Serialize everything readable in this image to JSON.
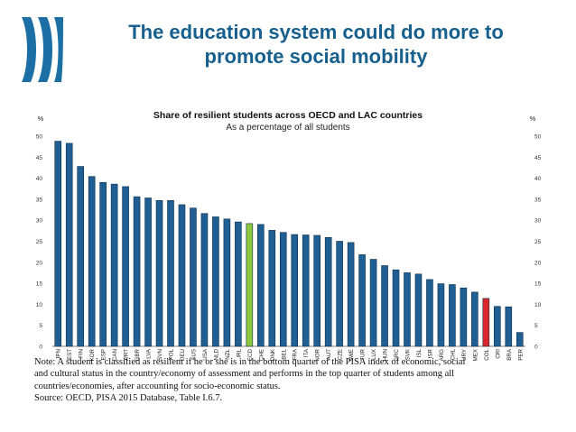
{
  "slide": {
    "title_line1": "The education system could do more to",
    "title_line2": "promote social mobility"
  },
  "colors": {
    "title": "#17608e",
    "bar": "#1f5f93",
    "highlight_oecd": "#8dc63f",
    "highlight_col": "#d9272d",
    "logo": "#1c6fa5"
  },
  "chart_data": {
    "type": "bar",
    "title": "Share of resilient students across OECD and LAC countries",
    "subtitle": "As a percentage of all students",
    "ylabel_left": "%",
    "ylabel_right": "%",
    "ylim": [
      0,
      50
    ],
    "yticks": [
      0,
      5,
      10,
      15,
      20,
      25,
      30,
      35,
      40,
      45,
      50
    ],
    "grid": false,
    "categories": [
      "JPN",
      "EST",
      "FIN",
      "KOR",
      "ESP",
      "CAN",
      "PRT",
      "GBR",
      "LVA",
      "SVN",
      "POL",
      "DEU",
      "AUS",
      "USA",
      "NLD",
      "NZL",
      "IRL",
      "OECD",
      "CHE",
      "DNK",
      "BEL",
      "FRA",
      "ITA",
      "NOR",
      "AUT",
      "CZE",
      "SWE",
      "TUR",
      "LUX",
      "HUN",
      "GRC",
      "SVK",
      "ISL",
      "ISR",
      "ARG",
      "CHL",
      "URY",
      "MEX",
      "COL",
      "CRI",
      "BRA",
      "PER"
    ],
    "values": [
      48.8,
      48.3,
      42.8,
      40.4,
      39.0,
      38.6,
      38.0,
      35.6,
      35.3,
      34.7,
      34.7,
      33.7,
      32.9,
      31.6,
      30.8,
      30.3,
      29.6,
      29.2,
      29.0,
      27.6,
      27.1,
      26.6,
      26.5,
      26.4,
      25.9,
      25.0,
      24.7,
      21.8,
      20.7,
      19.2,
      18.2,
      17.5,
      17.2,
      15.9,
      14.9,
      14.7,
      13.9,
      12.9,
      11.4,
      9.5,
      9.4,
      3.3
    ],
    "highlights": {
      "OECD": "highlight_oecd",
      "COL": "highlight_col"
    }
  },
  "note": {
    "line1": "Note: A student is classified as resilient if he or she is in the bottom quarter of the PISA index of economic, social",
    "line2": "and cultural status in the country/economy of assessment and performs in the top quarter of students among all",
    "line3": "countries/economies, after accounting for socio-economic status.",
    "source": "Source: OECD, PISA 2015 Database, Table I.6.7."
  }
}
